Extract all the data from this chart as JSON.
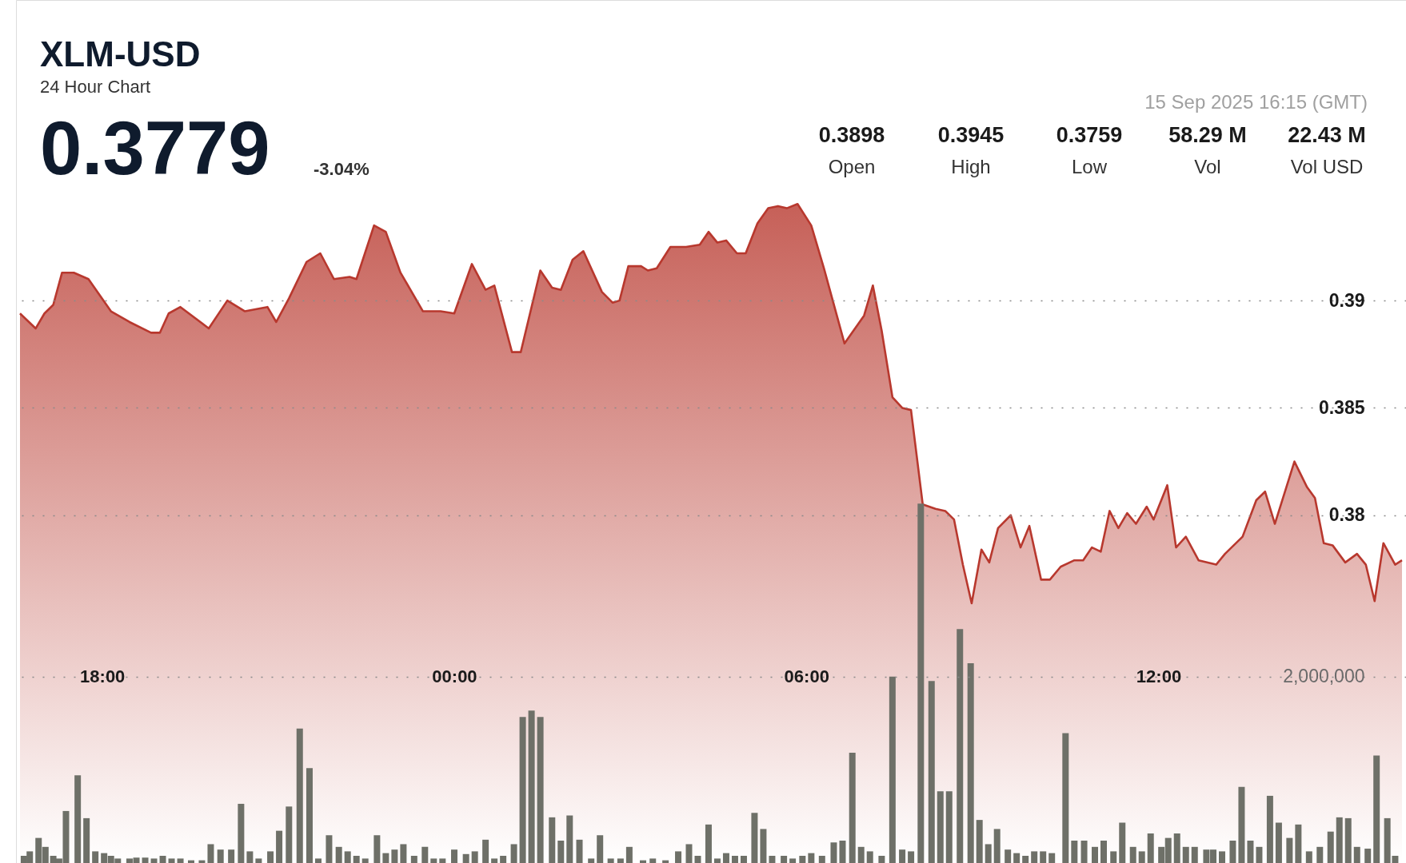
{
  "chart_data": {
    "type": "area",
    "title": "XLM-USD",
    "subtitle": "24 Hour Chart",
    "annotations": [
      "0.3779",
      "-3.04%",
      "0.3898",
      "Open",
      "0.3945",
      "High",
      "0.3759",
      "Low",
      "58.29 M",
      "Vol",
      "22.43 M",
      "Vol USD",
      "15 Sep 2025 16:15 (GMT)"
    ],
    "xlim": [
      "2025-09-14T16:36",
      "2025-09-15T16:09"
    ],
    "xticks": [
      {
        "value": "2025-09-14T18:00",
        "label": "18:00"
      },
      {
        "value": "2025-09-15T00:00",
        "label": "00:00"
      },
      {
        "value": "2025-09-15T06:00",
        "label": "06:00"
      },
      {
        "value": "2025-09-15T12:00",
        "label": "12:00"
      }
    ],
    "ylim": [
      0.3638,
      0.404
    ],
    "yticks": [
      0.38,
      0.385,
      0.39
    ],
    "y2lim": [
      0,
      9260000
    ],
    "y2ticks": [
      {
        "value": 2000000,
        "label": "2,000,000"
      }
    ],
    "grid": "y",
    "series": [
      {
        "color": "#b8382e",
        "x": [
          "2025-09-14T16:36",
          "2025-09-14T16:52",
          "2025-09-14T17:01",
          "2025-09-14T17:10",
          "2025-09-14T17:19",
          "2025-09-14T17:31",
          "2025-09-14T17:46",
          "2025-09-14T18:09",
          "2025-09-14T18:28",
          "2025-09-14T18:50",
          "2025-09-14T18:59",
          "2025-09-14T19:08",
          "2025-09-14T19:20",
          "2025-09-14T19:49",
          "2025-09-14T20:08",
          "2025-09-14T20:26",
          "2025-09-14T20:49",
          "2025-09-14T20:58",
          "2025-09-14T21:11",
          "2025-09-14T21:29",
          "2025-09-14T21:43",
          "2025-09-14T21:57",
          "2025-09-14T22:13",
          "2025-09-14T22:20",
          "2025-09-14T22:38",
          "2025-09-14T22:50",
          "2025-09-14T23:05",
          "2025-09-14T23:28",
          "2025-09-14T23:46",
          "2025-09-15T00:00",
          "2025-09-15T00:18",
          "2025-09-15T00:32",
          "2025-09-15T00:41",
          "2025-09-15T00:59",
          "2025-09-15T01:08",
          "2025-09-15T01:28",
          "2025-09-15T01:40",
          "2025-09-15T01:49",
          "2025-09-15T02:01",
          "2025-09-15T02:12",
          "2025-09-15T02:31",
          "2025-09-15T02:42",
          "2025-09-15T02:49",
          "2025-09-15T02:58",
          "2025-09-15T03:11",
          "2025-09-15T03:18",
          "2025-09-15T03:27",
          "2025-09-15T03:41",
          "2025-09-15T03:57",
          "2025-09-15T04:11",
          "2025-09-15T04:20",
          "2025-09-15T04:29",
          "2025-09-15T04:38",
          "2025-09-15T04:49",
          "2025-09-15T04:58",
          "2025-09-15T05:10",
          "2025-09-15T05:21",
          "2025-09-15T05:31",
          "2025-09-15T05:40",
          "2025-09-15T05:51",
          "2025-09-15T06:05",
          "2025-09-15T06:18",
          "2025-09-15T06:39",
          "2025-09-15T06:59",
          "2025-09-15T07:08",
          "2025-09-15T07:17",
          "2025-09-15T07:28",
          "2025-09-15T07:38",
          "2025-09-15T07:47",
          "2025-09-15T07:59",
          "2025-09-15T08:12",
          "2025-09-15T08:22",
          "2025-09-15T08:31",
          "2025-09-15T08:40",
          "2025-09-15T08:49",
          "2025-09-15T08:59",
          "2025-09-15T09:07",
          "2025-09-15T09:16",
          "2025-09-15T09:29",
          "2025-09-15T09:39",
          "2025-09-15T09:48",
          "2025-09-15T10:00",
          "2025-09-15T10:09",
          "2025-09-15T10:20",
          "2025-09-15T10:34",
          "2025-09-15T10:43",
          "2025-09-15T10:52",
          "2025-09-15T11:01",
          "2025-09-15T11:10",
          "2025-09-15T11:19",
          "2025-09-15T11:28",
          "2025-09-15T11:37",
          "2025-09-15T11:48",
          "2025-09-15T11:55",
          "2025-09-15T12:09",
          "2025-09-15T12:18",
          "2025-09-15T12:28",
          "2025-09-15T12:41",
          "2025-09-15T12:59",
          "2025-09-15T13:08",
          "2025-09-15T13:26",
          "2025-09-15T13:40",
          "2025-09-15T13:49",
          "2025-09-15T13:59",
          "2025-09-15T14:19",
          "2025-09-15T14:32",
          "2025-09-15T14:40",
          "2025-09-15T14:49",
          "2025-09-15T14:58",
          "2025-09-15T15:11",
          "2025-09-15T15:23",
          "2025-09-15T15:32",
          "2025-09-15T15:41",
          "2025-09-15T15:50",
          "2025-09-15T16:02",
          "2025-09-15T16:09"
        ],
        "values": [
          0.3894,
          0.3887,
          0.3894,
          0.3898,
          0.3913,
          0.3913,
          0.391,
          0.3895,
          0.389,
          0.3885,
          0.3885,
          0.3894,
          0.3897,
          0.3887,
          0.39,
          0.3895,
          0.3897,
          0.389,
          0.3901,
          0.3918,
          0.3922,
          0.391,
          0.3911,
          0.391,
          0.3935,
          0.3932,
          0.3913,
          0.3895,
          0.3895,
          0.3894,
          0.3917,
          0.3905,
          0.3907,
          0.3876,
          0.3876,
          0.3914,
          0.3906,
          0.3905,
          0.3919,
          0.3923,
          0.3904,
          0.3899,
          0.39,
          0.3916,
          0.3916,
          0.3914,
          0.3915,
          0.3925,
          0.3925,
          0.3926,
          0.3932,
          0.3927,
          0.3928,
          0.3922,
          0.3922,
          0.3936,
          0.3943,
          0.3944,
          0.3943,
          0.3945,
          0.3935,
          0.3915,
          0.388,
          0.3893,
          0.3907,
          0.3886,
          0.3855,
          0.385,
          0.3849,
          0.3805,
          0.3803,
          0.3802,
          0.3798,
          0.3777,
          0.3759,
          0.3784,
          0.3778,
          0.3794,
          0.38,
          0.3785,
          0.3795,
          0.377,
          0.377,
          0.3776,
          0.3779,
          0.3779,
          0.3785,
          0.3783,
          0.3802,
          0.3794,
          0.3801,
          0.3796,
          0.3804,
          0.3798,
          0.3814,
          0.3785,
          0.379,
          0.3779,
          0.3777,
          0.3782,
          0.379,
          0.3807,
          0.3811,
          0.3796,
          0.3825,
          0.3813,
          0.3808,
          0.3787,
          0.3786,
          0.3778,
          0.3782,
          0.3777,
          0.376,
          0.3787,
          0.3777,
          0.3779
        ]
      },
      {
        "type": "bar",
        "axis": "y2",
        "color": "#6e7068",
        "x": [
          "2025-09-14T16:40",
          "2025-09-14T16:46",
          "2025-09-14T16:55",
          "2025-09-14T17:02",
          "2025-09-14T17:10",
          "2025-09-14T17:16",
          "2025-09-14T17:23",
          "2025-09-14T17:35",
          "2025-09-14T17:44",
          "2025-09-14T17:53",
          "2025-09-14T18:02",
          "2025-09-14T18:09",
          "2025-09-14T18:16",
          "2025-09-14T18:28",
          "2025-09-14T18:35",
          "2025-09-14T18:44",
          "2025-09-14T18:53",
          "2025-09-14T19:02",
          "2025-09-14T19:11",
          "2025-09-14T19:20",
          "2025-09-14T19:31",
          "2025-09-14T19:42",
          "2025-09-14T19:51",
          "2025-09-14T20:01",
          "2025-09-14T20:12",
          "2025-09-14T20:22",
          "2025-09-14T20:31",
          "2025-09-14T20:40",
          "2025-09-14T20:52",
          "2025-09-14T21:01",
          "2025-09-14T21:11",
          "2025-09-14T21:22",
          "2025-09-14T21:32",
          "2025-09-14T21:41",
          "2025-09-14T21:52",
          "2025-09-14T22:02",
          "2025-09-14T22:11",
          "2025-09-14T22:20",
          "2025-09-14T22:29",
          "2025-09-14T22:41",
          "2025-09-14T22:50",
          "2025-09-14T22:59",
          "2025-09-14T23:08",
          "2025-09-14T23:19",
          "2025-09-14T23:30",
          "2025-09-14T23:39",
          "2025-09-14T23:48",
          "2025-09-15T00:00",
          "2025-09-15T00:12",
          "2025-09-15T00:21",
          "2025-09-15T00:32",
          "2025-09-15T00:41",
          "2025-09-15T00:50",
          "2025-09-15T01:01",
          "2025-09-15T01:10",
          "2025-09-15T01:19",
          "2025-09-15T01:28",
          "2025-09-15T01:40",
          "2025-09-15T01:49",
          "2025-09-15T01:58",
          "2025-09-15T02:08",
          "2025-09-15T02:20",
          "2025-09-15T02:29",
          "2025-09-15T02:40",
          "2025-09-15T02:50",
          "2025-09-15T02:59",
          "2025-09-15T03:13",
          "2025-09-15T03:23",
          "2025-09-15T03:36",
          "2025-09-15T03:49",
          "2025-09-15T04:00",
          "2025-09-15T04:09",
          "2025-09-15T04:20",
          "2025-09-15T04:29",
          "2025-09-15T04:38",
          "2025-09-15T04:47",
          "2025-09-15T04:56",
          "2025-09-15T05:07",
          "2025-09-15T05:16",
          "2025-09-15T05:25",
          "2025-09-15T05:37",
          "2025-09-15T05:46",
          "2025-09-15T05:56",
          "2025-09-15T06:05",
          "2025-09-15T06:16",
          "2025-09-15T06:28",
          "2025-09-15T06:37",
          "2025-09-15T06:47",
          "2025-09-15T06:56",
          "2025-09-15T07:05",
          "2025-09-15T07:17",
          "2025-09-15T07:28",
          "2025-09-15T07:38",
          "2025-09-15T07:47",
          "2025-09-15T07:57",
          "2025-09-15T08:08",
          "2025-09-15T08:17",
          "2025-09-15T08:26",
          "2025-09-15T08:37",
          "2025-09-15T08:48",
          "2025-09-15T08:57",
          "2025-09-15T09:06",
          "2025-09-15T09:15",
          "2025-09-15T09:26",
          "2025-09-15T09:35",
          "2025-09-15T09:44",
          "2025-09-15T09:53",
          "2025-09-15T10:02",
          "2025-09-15T10:11",
          "2025-09-15T10:25",
          "2025-09-15T10:34",
          "2025-09-15T10:44",
          "2025-09-15T10:55",
          "2025-09-15T11:04",
          "2025-09-15T11:14",
          "2025-09-15T11:23",
          "2025-09-15T11:34",
          "2025-09-15T11:43",
          "2025-09-15T11:52",
          "2025-09-15T12:03",
          "2025-09-15T12:10",
          "2025-09-15T12:19",
          "2025-09-15T12:28",
          "2025-09-15T12:37",
          "2025-09-15T12:49",
          "2025-09-15T12:56",
          "2025-09-15T13:05",
          "2025-09-15T13:16",
          "2025-09-15T13:25",
          "2025-09-15T13:34",
          "2025-09-15T13:43",
          "2025-09-15T13:54",
          "2025-09-15T14:03",
          "2025-09-15T14:14",
          "2025-09-15T14:23",
          "2025-09-15T14:34",
          "2025-09-15T14:45",
          "2025-09-15T14:56",
          "2025-09-15T15:05",
          "2025-09-15T15:14",
          "2025-09-15T15:23",
          "2025-09-15T15:34",
          "2025-09-15T15:43",
          "2025-09-15T15:54",
          "2025-09-15T16:02"
        ],
        "values": [
          77000,
          125000,
          269000,
          173000,
          77000,
          48000,
          558000,
          942000,
          481000,
          125000,
          106000,
          77000,
          48000,
          48000,
          58000,
          58000,
          48000,
          77000,
          48000,
          48000,
          29000,
          29000,
          202000,
          144000,
          144000,
          635000,
          125000,
          48000,
          125000,
          346000,
          606000,
          1442000,
          1019000,
          48000,
          298000,
          173000,
          125000,
          77000,
          48000,
          298000,
          106000,
          144000,
          202000,
          77000,
          173000,
          48000,
          48000,
          144000,
          96000,
          125000,
          250000,
          48000,
          77000,
          202000,
          1567000,
          1635000,
          1567000,
          490000,
          240000,
          510000,
          250000,
          48000,
          298000,
          48000,
          48000,
          173000,
          29000,
          48000,
          29000,
          125000,
          202000,
          77000,
          413000,
          48000,
          106000,
          77000,
          77000,
          538000,
          365000,
          77000,
          77000,
          48000,
          77000,
          106000,
          77000,
          221000,
          240000,
          1183000,
          173000,
          125000,
          77000,
          2000000,
          144000,
          125000,
          3856000,
          1952000,
          769000,
          769000,
          2510000,
          2144000,
          462000,
          202000,
          365000,
          144000,
          106000,
          77000,
          125000,
          125000,
          106000,
          1394000,
          240000,
          240000,
          173000,
          240000,
          125000,
          433000,
          173000,
          125000,
          317000,
          173000,
          269000,
          317000,
          173000,
          173000,
          144000,
          144000,
          125000,
          240000,
          817000,
          240000,
          173000,
          721000,
          433000,
          269000,
          413000,
          125000,
          173000,
          337000,
          490000,
          481000,
          173000,
          154000,
          1154000,
          481000,
          77000
        ]
      }
    ]
  }
}
